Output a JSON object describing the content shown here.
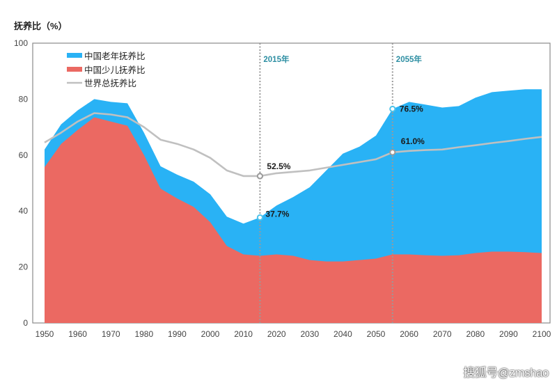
{
  "chart_data": {
    "type": "area",
    "title": "",
    "ylabel": "抚养比（%）",
    "xlabel": "",
    "ylim": [
      0,
      100
    ],
    "xlim": [
      1950,
      2100
    ],
    "yticks": [
      0,
      20,
      40,
      60,
      80,
      100
    ],
    "xticks": [
      1950,
      1960,
      1970,
      1980,
      1990,
      2000,
      2010,
      2020,
      2030,
      2040,
      2050,
      2060,
      2070,
      2080,
      2090,
      2100
    ],
    "legend_position": "top-left",
    "colors": {
      "old": "#29b2f5",
      "child": "#eb6962",
      "world": "#c0c0c0",
      "marker": "#2e8fa3"
    },
    "x": [
      1950,
      1955,
      1960,
      1965,
      1970,
      1975,
      1980,
      1985,
      1990,
      1995,
      2000,
      2005,
      2010,
      2015,
      2020,
      2025,
      2030,
      2035,
      2040,
      2045,
      2050,
      2055,
      2060,
      2065,
      2070,
      2075,
      2080,
      2085,
      2090,
      2095,
      2100
    ],
    "series": [
      {
        "name": "中国老年抚养比",
        "key": "old",
        "stack_top": true,
        "values": [
          62,
          71,
          76,
          80,
          79,
          78.5,
          68,
          56,
          53,
          50.5,
          46,
          38,
          35.5,
          37.7,
          42,
          45,
          48.5,
          54.5,
          60.5,
          63,
          67,
          76.5,
          79,
          78,
          77,
          77.5,
          80.5,
          82.5,
          83,
          83.5,
          83.5
        ]
      },
      {
        "name": "中国少儿抚养比",
        "key": "child",
        "values": [
          55.7,
          64,
          69,
          73.5,
          72,
          70.5,
          60,
          48,
          44.5,
          41.5,
          36,
          27.5,
          24.5,
          24,
          24.5,
          24,
          22.5,
          22,
          22,
          22.5,
          23,
          24.5,
          24.5,
          24.2,
          24,
          24.2,
          25,
          25.5,
          25.5,
          25.3,
          25
        ]
      },
      {
        "name": "世界总抚养比",
        "key": "world",
        "values": [
          64.5,
          68,
          72,
          75,
          74.5,
          73.5,
          70,
          65.5,
          64,
          62,
          59,
          54.5,
          52.5,
          52.5,
          53.5,
          54,
          54.5,
          55.5,
          56.5,
          57.5,
          58.5,
          61,
          61.5,
          61.8,
          62,
          62.8,
          63.5,
          64.3,
          65,
          65.8,
          66.5
        ]
      }
    ],
    "markers": [
      {
        "year_label": "2015年",
        "year": 2015,
        "points": [
          {
            "series": "world",
            "value": 52.5,
            "label": "52.5%"
          },
          {
            "series": "old",
            "value": 37.7,
            "label": "37.7%"
          }
        ]
      },
      {
        "year_label": "2055年",
        "year": 2055,
        "points": [
          {
            "series": "old",
            "value": 76.5,
            "label": "76.5%"
          },
          {
            "series": "world",
            "value": 61.0,
            "label": "61.0%"
          }
        ]
      }
    ]
  },
  "watermark": "搜狐号@zmshao"
}
